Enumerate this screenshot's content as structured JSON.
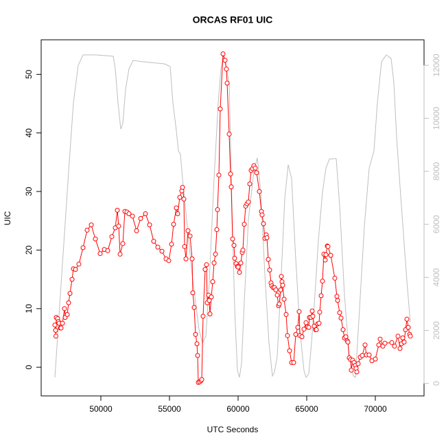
{
  "chart_data": {
    "type": "line",
    "title": "ORCAS RF01 UIC",
    "xlabel": "UTC Seconds",
    "ylabel": "UIC",
    "xlim": [
      45650,
      73550
    ],
    "xticks": [
      50000,
      55000,
      60000,
      65000,
      70000
    ],
    "ylim": [
      -4.9,
      55.9
    ],
    "yticks": [
      0,
      10,
      20,
      30,
      40,
      50
    ],
    "y2lim": [
      -470,
      12960
    ],
    "y2ticks": [
      0,
      2000,
      4000,
      6000,
      8000,
      10000,
      12000
    ],
    "y2color": "#bebebe",
    "series": [
      {
        "color": "#ff0000",
        "marker": "circle",
        "x": [
          46650,
          46700,
          46720,
          46750,
          46850,
          46900,
          46950,
          47050,
          47100,
          47200,
          47350,
          47400,
          47550,
          47650,
          47750,
          47900,
          48000,
          48150,
          48400,
          48700,
          49000,
          49300,
          49600,
          49950,
          50250,
          50500,
          50800,
          51050,
          51200,
          51300,
          51400,
          51600,
          51750,
          51900,
          52050,
          52300,
          52600,
          52900,
          53250,
          53550,
          53850,
          54150,
          54450,
          54750,
          54950,
          55150,
          55300,
          55500,
          55600,
          55750,
          55900,
          55950,
          56050,
          56100,
          56200,
          56350,
          56500,
          56650,
          56700,
          56800,
          56900,
          57000,
          57050,
          57100,
          57200,
          57300,
          57350,
          57450,
          57600,
          57700,
          57750,
          57850,
          57900,
          57950,
          58050,
          58150,
          58250,
          58350,
          58450,
          58500,
          58600,
          58700,
          58900,
          59050,
          59150,
          59200,
          59350,
          59450,
          59500,
          59600,
          59700,
          59750,
          59850,
          59950,
          60000,
          60100,
          60200,
          60300,
          60350,
          60450,
          60550,
          60650,
          60750,
          60850,
          60950,
          61050,
          61150,
          61250,
          61350,
          61550,
          61700,
          61750,
          61850,
          61950,
          62050,
          62100,
          62200,
          62300,
          62400,
          62450,
          62550,
          62650,
          62750,
          62850,
          62950,
          63000,
          63100,
          63150,
          63200,
          63250,
          63350,
          63500,
          63600,
          63750,
          63900,
          64050,
          64200,
          64350,
          64450,
          64500,
          64650,
          64800,
          64950,
          65050,
          65150,
          65200,
          65300,
          65400,
          65450,
          65550,
          65650,
          65700,
          65800,
          65900,
          65950,
          66050,
          66150,
          66250,
          66350,
          66400,
          66500,
          66550,
          66750,
          67050,
          67200,
          67250,
          67400,
          67500,
          67650,
          67750,
          67850,
          67950,
          68000,
          68100,
          68200,
          68250,
          68350,
          68450,
          68550,
          68600,
          68650,
          68750,
          68900,
          69050,
          69250,
          69350,
          69550,
          69750,
          70000,
          70250,
          70350,
          70550,
          70700,
          71200,
          71400,
          71650,
          71800,
          71900,
          72000,
          72100,
          72200,
          72300,
          72400,
          72500,
          72550
        ],
        "values": [
          7.2,
          6.3,
          5.3,
          8.5,
          8.3,
          7.8,
          7.5,
          6.7,
          6.7,
          7.5,
          10.0,
          8.5,
          9.0,
          11.0,
          12.6,
          15.0,
          16.8,
          16.7,
          17.6,
          20.4,
          23.4,
          24.3,
          21.9,
          19.4,
          20.1,
          19.9,
          22.3,
          23.8,
          26.8,
          24.1,
          19.3,
          21.1,
          26.6,
          26.5,
          26.2,
          25.8,
          23.3,
          25.4,
          26.2,
          24.3,
          21.5,
          20.5,
          19.8,
          18.5,
          18.2,
          21.0,
          24.4,
          27.2,
          26.2,
          29.0,
          30.1,
          30.7,
          28.7,
          20.6,
          18.5,
          23.3,
          22.4,
          18.5,
          12.7,
          10.2,
          5.6,
          4.0,
          2.0,
          -2.6,
          -2.5,
          -2.3,
          -2.1,
          8.7,
          16.7,
          17.5,
          11.0,
          12.3,
          11.4,
          9.1,
          12.0,
          14.6,
          17.8,
          19.3,
          23.5,
          26.9,
          32.8,
          44.1,
          53.5,
          52.4,
          50.9,
          48.5,
          39.8,
          33.0,
          30.8,
          21.9,
          20.8,
          18.6,
          17.7,
          17.2,
          17.1,
          16.2,
          17.8,
          19.6,
          20.0,
          24.4,
          27.5,
          27.9,
          28.2,
          31.3,
          33.6,
          33.9,
          34.4,
          34.0,
          33.2,
          30.0,
          26.6,
          26.0,
          24.5,
          22.0,
          22.6,
          22.1,
          18.4,
          16.6,
          14.4,
          13.9,
          13.6,
          13.6,
          13.2,
          12.3,
          10.5,
          10.8,
          13.2,
          15.5,
          14.6,
          14.0,
          11.6,
          9.0,
          5.4,
          2.8,
          0.8,
          0.8,
          5.6,
          6.8,
          9.5,
          5.4,
          5.2,
          6.5,
          7.6,
          6.9,
          6.8,
          8.5,
          8.5,
          9.6,
          8.7,
          7.0,
          6.4,
          6.4,
          7.4,
          7.5,
          9.4,
          12.2,
          14.7,
          19.3,
          18.3,
          19.2,
          20.7,
          20.6,
          19.1,
          15.2,
          12.1,
          11.4,
          9.3,
          8.4,
          6.4,
          5.0,
          5.2,
          4.5,
          4.3,
          1.6,
          1.3,
          -0.5,
          1.2,
          0.8,
          0.3,
          -0.2,
          -0.8,
          0.6,
          1.7,
          2.0,
          3.8,
          2.1,
          2.1,
          1.1,
          1.4,
          3.8,
          4.8,
          3.6,
          4.1,
          4.2,
          3.6,
          5.3,
          3.2,
          4.0,
          5.0,
          4.3,
          6.4,
          8.2,
          6.8,
          5.6,
          5.3
        ]
      },
      {
        "color": "#bebebe",
        "axis": "y2",
        "x": [
          46650,
          47150,
          47650,
          48000,
          48350,
          48700,
          49650,
          50900,
          51050,
          51250,
          51450,
          51600,
          51800,
          52050,
          52350,
          53150,
          54650,
          55050,
          55250,
          55500,
          55650,
          55800,
          55950,
          56150,
          56650,
          57150,
          57400,
          57650,
          57900,
          58250,
          58550,
          58750,
          58950,
          59350,
          59550,
          59750,
          59950,
          60100,
          60250,
          60450,
          60750,
          61150,
          61400,
          61650,
          61950,
          62250,
          62500,
          62650,
          62850,
          63100,
          63400,
          63650,
          63900,
          64150,
          64500,
          64800,
          64950,
          65150,
          65350,
          65600,
          65850,
          66150,
          66400,
          66650,
          67150,
          67400,
          67750,
          68100,
          68400,
          68550,
          68850,
          69200,
          69550,
          69900,
          70150,
          70450,
          70800,
          71150,
          71350,
          71550,
          71900,
          72300,
          72550
        ],
        "values": [
          230,
          4110,
          7990,
          10580,
          12000,
          12390,
          12390,
          12340,
          11870,
          10580,
          9590,
          9800,
          11090,
          11870,
          12180,
          12130,
          12050,
          11950,
          10580,
          9540,
          8770,
          8640,
          7730,
          6700,
          4110,
          2040,
          1530,
          1780,
          3850,
          7730,
          10580,
          11870,
          12390,
          11350,
          6700,
          2820,
          490,
          230,
          750,
          3080,
          6180,
          7990,
          8510,
          7210,
          4110,
          1530,
          280,
          440,
          1010,
          3590,
          6960,
          8250,
          7730,
          5150,
          2040,
          490,
          230,
          360,
          1530,
          3340,
          5400,
          7210,
          8120,
          8460,
          8480,
          6700,
          3340,
          1010,
          280,
          230,
          2820,
          5920,
          8120,
          8770,
          10580,
          12130,
          12390,
          12260,
          11350,
          9280,
          6700,
          3850,
          2300
        ]
      }
    ]
  }
}
